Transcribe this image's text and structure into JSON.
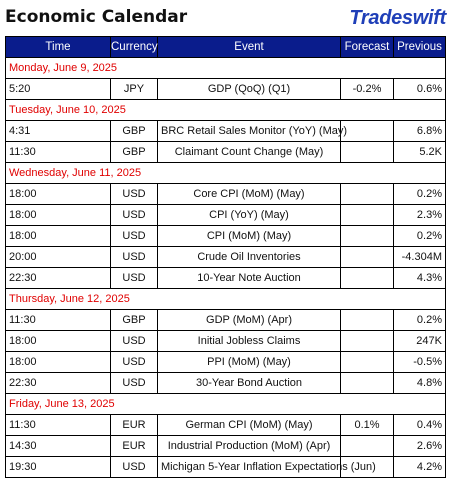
{
  "header": {
    "title": "Economic Calendar",
    "brand": "Tradeswift"
  },
  "columns": [
    "Time",
    "Currency",
    "Event",
    "Forecast",
    "Previous"
  ],
  "days": [
    {
      "date": "Monday, June 9, 2025",
      "events": [
        {
          "time": "5:20",
          "currency": "JPY",
          "event": "GDP (QoQ) (Q1)",
          "forecast": "-0.2%",
          "previous": "0.6%"
        }
      ]
    },
    {
      "date": "Tuesday, June 10, 2025",
      "events": [
        {
          "time": "4:31",
          "currency": "GBP",
          "event": "BRC Retail Sales Monitor (YoY) (May)",
          "forecast": "",
          "previous": "6.8%"
        },
        {
          "time": "11:30",
          "currency": "GBP",
          "event": "Claimant Count Change (May)",
          "forecast": "",
          "previous": "5.2K"
        }
      ]
    },
    {
      "date": "Wednesday, June 11, 2025",
      "events": [
        {
          "time": "18:00",
          "currency": "USD",
          "event": "Core CPI (MoM) (May)",
          "forecast": "",
          "previous": "0.2%"
        },
        {
          "time": "18:00",
          "currency": "USD",
          "event": "CPI (YoY) (May)",
          "forecast": "",
          "previous": "2.3%"
        },
        {
          "time": "18:00",
          "currency": "USD",
          "event": "CPI (MoM) (May)",
          "forecast": "",
          "previous": "0.2%"
        },
        {
          "time": "20:00",
          "currency": "USD",
          "event": "Crude Oil Inventories",
          "forecast": "",
          "previous": "-4.304M"
        },
        {
          "time": "22:30",
          "currency": "USD",
          "event": "10-Year Note Auction",
          "forecast": "",
          "previous": "4.3%"
        }
      ]
    },
    {
      "date": "Thursday, June 12, 2025",
      "events": [
        {
          "time": "11:30",
          "currency": "GBP",
          "event": "GDP (MoM) (Apr)",
          "forecast": "",
          "previous": "0.2%"
        },
        {
          "time": "18:00",
          "currency": "USD",
          "event": "Initial Jobless Claims",
          "forecast": "",
          "previous": "247K"
        },
        {
          "time": "18:00",
          "currency": "USD",
          "event": "PPI (MoM) (May)",
          "forecast": "",
          "previous": "-0.5%"
        },
        {
          "time": "22:30",
          "currency": "USD",
          "event": "30-Year Bond Auction",
          "forecast": "",
          "previous": "4.8%"
        }
      ]
    },
    {
      "date": "Friday, June 13, 2025",
      "events": [
        {
          "time": "11:30",
          "currency": "EUR",
          "event": "German CPI (MoM) (May)",
          "forecast": "0.1%",
          "previous": "0.4%"
        },
        {
          "time": "14:30",
          "currency": "EUR",
          "event": "Industrial Production (MoM) (Apr)",
          "forecast": "",
          "previous": "2.6%"
        },
        {
          "time": "19:30",
          "currency": "USD",
          "event": "Michigan 5-Year Inflation Expectations (Jun)",
          "forecast": "",
          "previous": "4.2%"
        }
      ]
    }
  ],
  "colors": {
    "header_bg": "#0a1c8c",
    "date_text": "#e00000",
    "brand": "#1f3fb8"
  }
}
